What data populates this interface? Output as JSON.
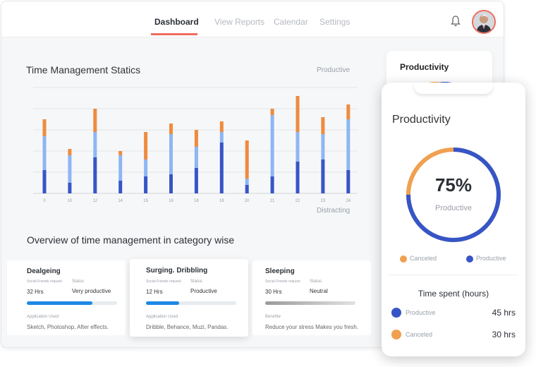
{
  "nav": {
    "items": [
      "Dashboard",
      "View Reports",
      "Calendar",
      "Settings"
    ],
    "active": "Dashboard"
  },
  "chart_title": "Time Management Statics",
  "chart_data": {
    "type": "bar",
    "stacked": true,
    "categories": [
      "0",
      "10",
      "12",
      "14",
      "15",
      "16",
      "18",
      "19",
      "20",
      "21",
      "22",
      "23",
      "24"
    ],
    "series": [
      {
        "name": "",
        "color": "#3655c7",
        "values": [
          1.1,
          0.5,
          1.7,
          0.6,
          0.8,
          0.9,
          1.2,
          2.4,
          0.4,
          0.8,
          1.5,
          1.6,
          1.1
        ]
      },
      {
        "name": "",
        "color": "#8db6f4",
        "values": [
          1.6,
          1.3,
          1.2,
          1.2,
          0.8,
          1.9,
          1.0,
          0.5,
          0.3,
          2.9,
          1.4,
          1.2,
          2.4
        ]
      },
      {
        "name": "",
        "color": "#ef8b3e",
        "values": [
          0.8,
          0.3,
          1.1,
          0.2,
          1.3,
          0.5,
          0.8,
          0.5,
          1.8,
          0.3,
          1.7,
          0.8,
          0.7
        ]
      }
    ],
    "legend": [
      "Productive",
      "Distracting"
    ],
    "ylim": [
      0,
      5
    ],
    "grid": true
  },
  "overview_title": "Overview of time management in category wise",
  "cards": [
    {
      "title": "Dealgeing",
      "small_label": "Social Friends request",
      "hours": "32 Hrs",
      "status_label": "Status",
      "status": "Very productive",
      "progress": 0.73,
      "bar_color": "#1e88e5",
      "foot_label": "Application Used",
      "foot_value": "Sketch, Photoshop, After effects."
    },
    {
      "title": "Surging. Dribbling",
      "small_label": "Social Friends request",
      "hours": "12 Hrs",
      "status_label": "Status",
      "status": "Productive",
      "progress": 0.37,
      "bar_color": "#1e88e5",
      "foot_label": "Application Used",
      "foot_value": "Dribble, Behance, Muzi, Pandas."
    },
    {
      "title": "Sleeping",
      "small_label": "Social Friends request",
      "hours": "30 Hrs",
      "status_label": "Status",
      "status": "Neutral",
      "progress": 1.0,
      "bar_color": "#c4c4c4",
      "foot_label": "Benefite",
      "foot_value": "Reduce your stress Makes you fresh."
    }
  ],
  "side_card_title": "Productivity",
  "phone": {
    "title": "Productivity",
    "percent": "75%",
    "percent_label": "Productive",
    "productive_fraction": 0.75,
    "legend": [
      {
        "label": "Canceled",
        "color": "#f0a050"
      },
      {
        "label": "Productive",
        "color": "#3655c7"
      }
    ],
    "time_spent_title": "Time spent (hours)",
    "time_rows": [
      {
        "label": "Productive",
        "hours": "45 hrs",
        "color": "#3655c7"
      },
      {
        "label": "Canceled",
        "hours": "30 hrs",
        "color": "#f0a050"
      }
    ]
  },
  "icons": {
    "bell": "bell-icon",
    "avatar": "user-avatar"
  }
}
